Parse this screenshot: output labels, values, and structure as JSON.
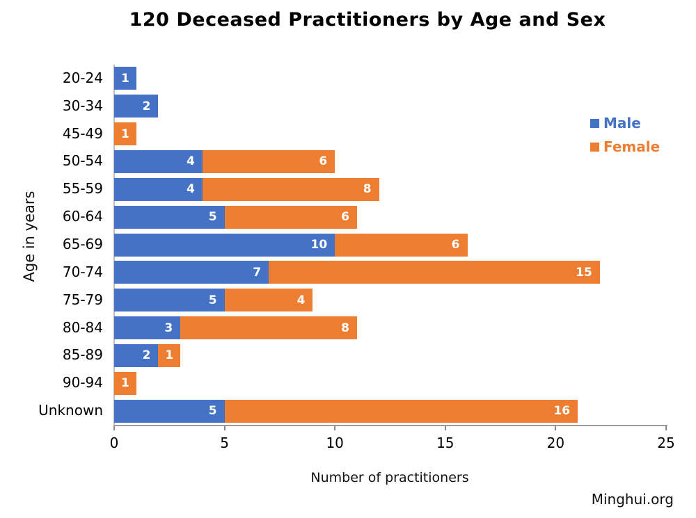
{
  "watermark": "Minghui.org",
  "chart_data": {
    "type": "bar",
    "orientation": "horizontal",
    "stacked": true,
    "title": "120 Deceased Practitioners by Age and Sex",
    "xlabel": "Number of practitioners",
    "ylabel": "Age in years",
    "xlim": [
      0,
      25
    ],
    "xticks": [
      0,
      5,
      10,
      15,
      20,
      25
    ],
    "grid": false,
    "legend_position": "upper-right",
    "data_label_color": "#FFFFFF",
    "categories": [
      "20-24",
      "30-34",
      "45-49",
      "50-54",
      "55-59",
      "60-64",
      "65-69",
      "70-74",
      "75-79",
      "80-84",
      "85-89",
      "90-94",
      "Unknown"
    ],
    "series": [
      {
        "name": "Male",
        "color": "#4472C4",
        "values": [
          1,
          2,
          0,
          4,
          4,
          5,
          10,
          7,
          5,
          3,
          2,
          0,
          5
        ]
      },
      {
        "name": "Female",
        "color": "#ED7D31",
        "values": [
          0,
          0,
          1,
          6,
          8,
          6,
          6,
          15,
          4,
          8,
          1,
          1,
          16
        ]
      }
    ]
  }
}
